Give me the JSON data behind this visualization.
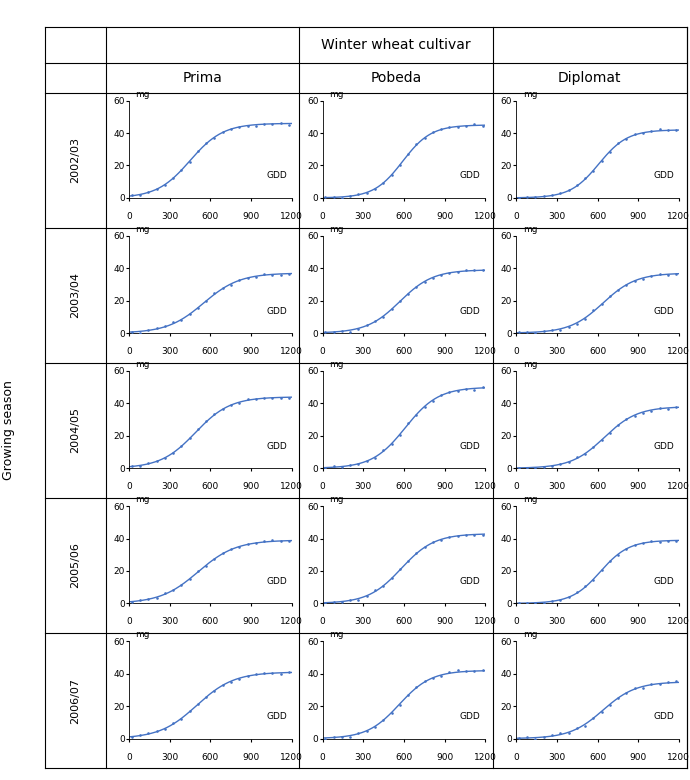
{
  "seasons": [
    "2002/03",
    "2003/04",
    "2004/05",
    "2005/06",
    "2006/07"
  ],
  "cultivars": [
    "Prima",
    "Pobeda",
    "Diplomat"
  ],
  "main_title": "Winter wheat cultivar",
  "growing_season_label": "Growing season",
  "curves": {
    "Prima": {
      "2002/03": {
        "max_val": 46,
        "inflect": 450,
        "steepness": 0.0082
      },
      "2003/04": {
        "max_val": 37,
        "inflect": 550,
        "steepness": 0.0075
      },
      "2004/05": {
        "max_val": 44,
        "inflect": 490,
        "steepness": 0.0078
      },
      "2005/06": {
        "max_val": 39,
        "inflect": 510,
        "steepness": 0.0072
      },
      "2006/07": {
        "max_val": 41,
        "inflect": 500,
        "steepness": 0.0073
      }
    },
    "Pobeda": {
      "2002/03": {
        "max_val": 45,
        "inflect": 590,
        "steepness": 0.0095
      },
      "2003/04": {
        "max_val": 39,
        "inflect": 570,
        "steepness": 0.0082
      },
      "2004/05": {
        "max_val": 50,
        "inflect": 610,
        "steepness": 0.0082
      },
      "2005/06": {
        "max_val": 43,
        "inflect": 580,
        "steepness": 0.0082
      },
      "2006/07": {
        "max_val": 42,
        "inflect": 565,
        "steepness": 0.0085
      }
    },
    "Diplomat": {
      "2002/03": {
        "max_val": 42,
        "inflect": 610,
        "steepness": 0.0095
      },
      "2003/04": {
        "max_val": 37,
        "inflect": 640,
        "steepness": 0.0082
      },
      "2004/05": {
        "max_val": 38,
        "inflect": 650,
        "steepness": 0.0082
      },
      "2005/06": {
        "max_val": 39,
        "inflect": 620,
        "steepness": 0.0095
      },
      "2006/07": {
        "max_val": 35,
        "inflect": 640,
        "steepness": 0.0082
      }
    }
  },
  "curve_color": "#4472C4",
  "dot_color": "#4472C4",
  "dot_size": 3.5,
  "line_width": 1.0,
  "ylim": [
    0,
    60
  ],
  "xlim": [
    0,
    1200
  ],
  "yticks": [
    0,
    20,
    40,
    60
  ],
  "xticks": [
    0,
    300,
    600,
    900,
    1200
  ],
  "xlabel_label": "GDD",
  "ylabel_label": "mg",
  "subplot_fontsize": 6.5,
  "header_fontsize": 10,
  "season_fontsize": 8,
  "num_data_points": 20,
  "border_color": "#000000",
  "border_lw": 0.8
}
